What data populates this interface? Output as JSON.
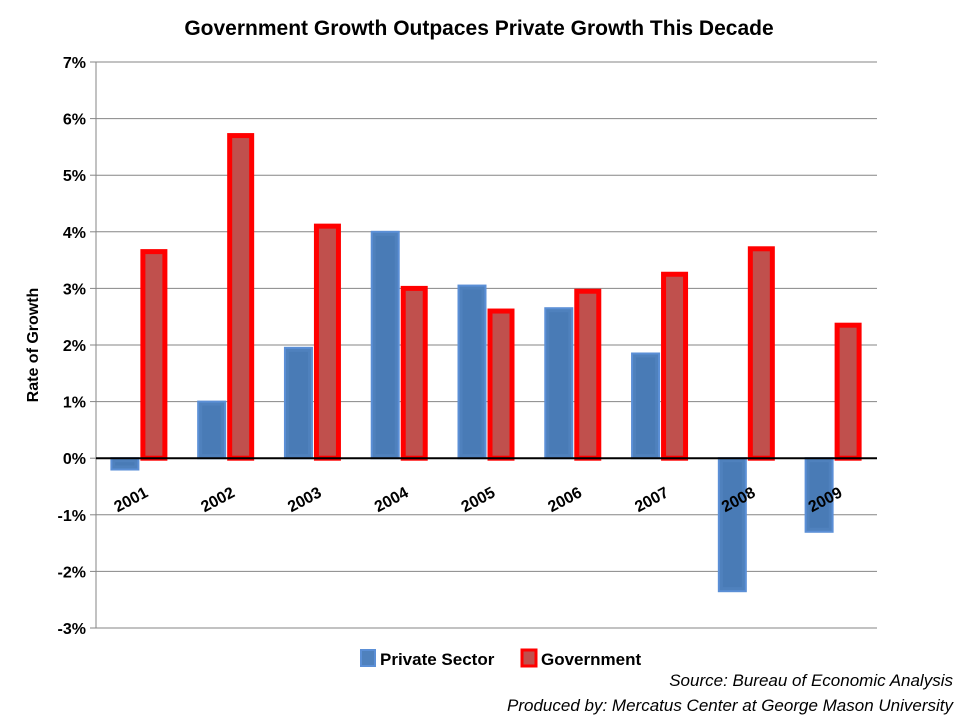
{
  "chart_data": {
    "type": "bar",
    "title": "Government Growth Outpaces Private Growth This Decade",
    "ylabel": "Rate of Growth",
    "xlabel": "",
    "categories": [
      "2001",
      "2002",
      "2003",
      "2004",
      "2005",
      "2006",
      "2007",
      "2008",
      "2009"
    ],
    "series": [
      {
        "name": "Private Sector",
        "color": "#4f81bd",
        "values": [
          -0.2,
          1.0,
          1.95,
          4.0,
          3.05,
          2.65,
          1.85,
          -2.35,
          -1.3
        ]
      },
      {
        "name": "Government",
        "color": "#ff0000",
        "fill": "#c0504d",
        "values": [
          3.65,
          5.7,
          4.1,
          3.0,
          2.6,
          2.95,
          3.25,
          3.7,
          2.35
        ]
      }
    ],
    "ylim": [
      -3,
      7
    ],
    "yticks": [
      "-3%",
      "-2%",
      "-1%",
      "0%",
      "1%",
      "2%",
      "3%",
      "4%",
      "5%",
      "6%",
      "7%"
    ],
    "grid": true,
    "legend": "bottom-center"
  },
  "footer": {
    "source": "Source: Bureau of Economic Analysis",
    "produced_by": "Produced by: Mercatus Center at George Mason University"
  }
}
